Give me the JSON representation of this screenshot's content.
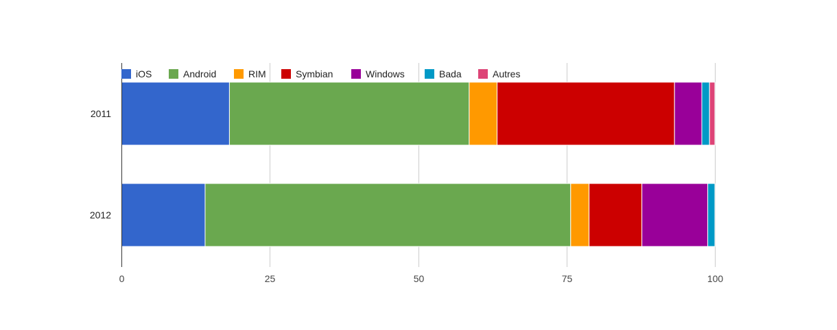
{
  "chart_data": {
    "type": "bar",
    "orientation": "horizontal",
    "stacked": true,
    "categories": [
      "2011",
      "2012"
    ],
    "series": [
      {
        "name": "iOS",
        "color": "#3366cc",
        "values": [
          18.2,
          14.1
        ]
      },
      {
        "name": "Android",
        "color": "#6aa84f",
        "values": [
          40.4,
          61.6
        ]
      },
      {
        "name": "RIM",
        "color": "#ff9900",
        "values": [
          4.7,
          3.1
        ]
      },
      {
        "name": "Symbian",
        "color": "#cc0000",
        "values": [
          29.9,
          8.9
        ]
      },
      {
        "name": "Windows",
        "color": "#990099",
        "values": [
          4.6,
          11.1
        ]
      },
      {
        "name": "Bada",
        "color": "#0099c6",
        "values": [
          1.3,
          1.2
        ]
      },
      {
        "name": "Autres",
        "color": "#dd4477",
        "values": [
          0.9,
          0
        ]
      }
    ],
    "xlim": [
      0,
      100
    ],
    "xticks": [
      "0",
      "25",
      "50",
      "75",
      "100"
    ],
    "grid": true,
    "legend_position": "top",
    "title": "",
    "xlabel": "",
    "ylabel": ""
  }
}
